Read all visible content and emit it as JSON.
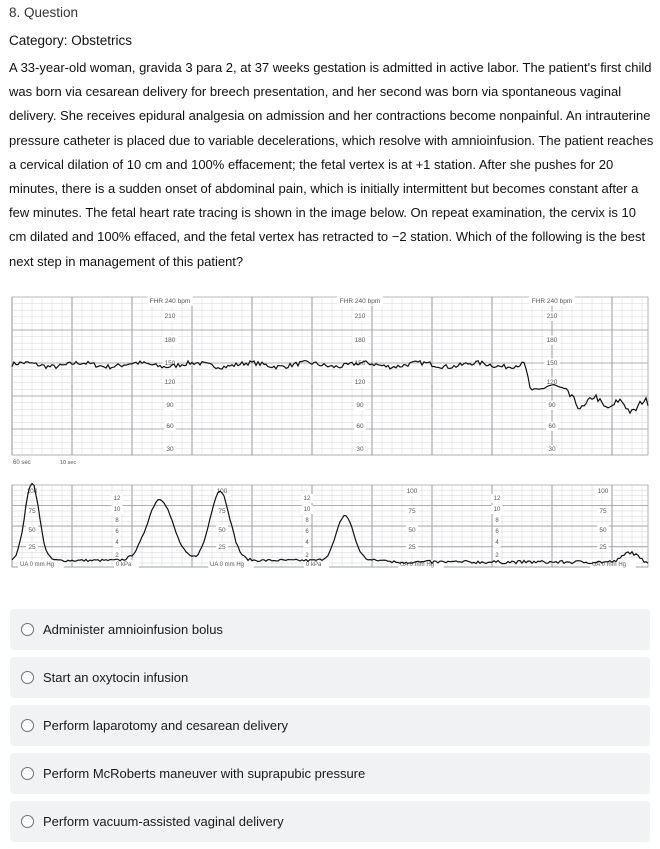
{
  "question": {
    "number_label": "8. Question",
    "category_label": "Category: Obstetrics",
    "stem": "A 33-year-old woman, gravida 3 para 2, at 37 weeks gestation is admitted in active labor.  The patient's first child was born via cesarean delivery for breech presentation, and her second was born via spontaneous vaginal delivery.  She receives epidural analgesia on admission and her contractions become nonpainful.  An intrauterine pressure catheter is placed due to variable decelerations, which resolve with amnioinfusion.  The patient reaches a cervical dilation of 10 cm and 100% effacement; the fetal vertex is at +1 station.  After she pushes for 20 minutes, there is a sudden onset of abdominal pain, which is initially intermittent but becomes constant after a few minutes.  The fetal heart rate tracing is shown in the image below.  On repeat examination, the cervix is 10 cm dilated and 100% effaced, and the fetal vertex has retracted to −2 station.  Which of the following is the best next step in management of this patient?"
  },
  "fhr_strip": {
    "fhr_header": "FHR 240 bpm",
    "fhr_ticks": [
      "210",
      "180",
      "150",
      "120",
      "90",
      "60",
      "30"
    ],
    "ua_ticks": [
      "100",
      "75",
      "50",
      "25"
    ],
    "kpa_ticks": [
      "12",
      "10",
      "8",
      "6",
      "4",
      "2"
    ],
    "ua_label": "UA  0  mm Hg",
    "kpa_label": "0  kPa",
    "speed_label": "60 sec",
    "speed_label_2": "10 sec",
    "line_color": "#111111",
    "grid_color": "#c9cbd0"
  },
  "choices": [
    {
      "label": "Administer amnioinfusion bolus"
    },
    {
      "label": "Start an oxytocin infusion"
    },
    {
      "label": "Perform laparotomy and cesarean delivery"
    },
    {
      "label": "Perform McRoberts maneuver with suprapubic pressure"
    },
    {
      "label": "Perform vacuum-assisted vaginal delivery"
    }
  ]
}
